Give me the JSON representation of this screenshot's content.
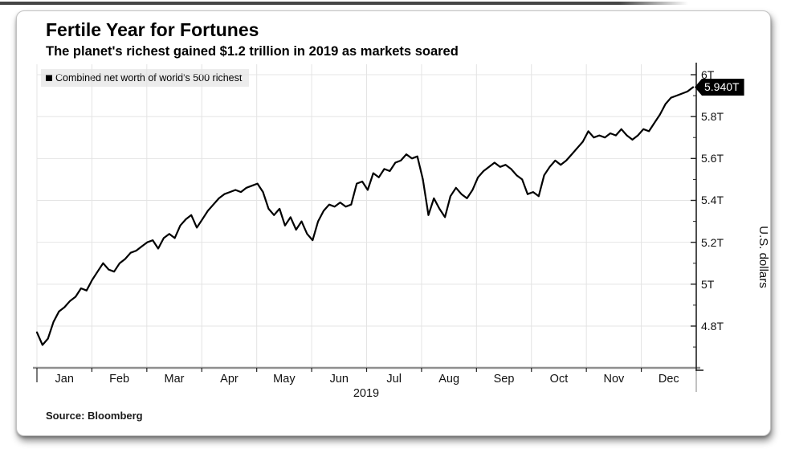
{
  "header": {
    "title": "Fertile Year for Fortunes",
    "subtitle": "The planet's richest gained $1.2 trillion in 2019 as markets soared"
  },
  "legend": {
    "label": "Combined net worth of world's 500 richest"
  },
  "footer": {
    "source": "Source: Bloomberg"
  },
  "colors": {
    "line": "#000000",
    "grid": "#e4e4e4",
    "axis": "#222222",
    "baseline": "#8f8f8f",
    "badge_bg": "#000000",
    "badge_text": "#ffffff",
    "legend_bg": "#ececec"
  },
  "chart_data": {
    "type": "line",
    "title": "Fertile Year for Fortunes",
    "subtitle": "The planet's richest gained $1.2 trillion in 2019 as markets soared",
    "xlabel": "2019",
    "ylabel": "U.S. dollars",
    "x_tick_labels": [
      "Jan",
      "Feb",
      "Mar",
      "Apr",
      "May",
      "Jun",
      "Jul",
      "Aug",
      "Sep",
      "Oct",
      "Nov",
      "Dec"
    ],
    "y_ticks": [
      {
        "value": 6.0,
        "label": "6T"
      },
      {
        "value": 5.8,
        "label": "5.8T"
      },
      {
        "value": 5.6,
        "label": "5.6T"
      },
      {
        "value": 5.4,
        "label": "5.4T"
      },
      {
        "value": 5.2,
        "label": "5.2T"
      },
      {
        "value": 5.0,
        "label": "5T"
      },
      {
        "value": 4.8,
        "label": "4.8T"
      }
    ],
    "y_minor_ticks": [
      4.7,
      4.9,
      5.1,
      5.3,
      5.5,
      5.7,
      5.9
    ],
    "ylim": [
      4.6,
      6.04
    ],
    "grid": true,
    "legend_position": "top-left",
    "last_point_label": "5.940T",
    "last_point_value": 5.94,
    "series": [
      {
        "name": "Combined net worth of world's 500 richest",
        "color": "#000000",
        "values": [
          4.77,
          4.71,
          4.74,
          4.82,
          4.87,
          4.89,
          4.92,
          4.94,
          4.98,
          4.97,
          5.02,
          5.06,
          5.1,
          5.07,
          5.06,
          5.1,
          5.12,
          5.15,
          5.16,
          5.18,
          5.2,
          5.21,
          5.17,
          5.22,
          5.24,
          5.22,
          5.28,
          5.31,
          5.33,
          5.27,
          5.31,
          5.35,
          5.38,
          5.41,
          5.43,
          5.44,
          5.45,
          5.44,
          5.46,
          5.47,
          5.48,
          5.44,
          5.36,
          5.33,
          5.36,
          5.28,
          5.32,
          5.26,
          5.3,
          5.24,
          5.21,
          5.3,
          5.35,
          5.38,
          5.37,
          5.39,
          5.37,
          5.38,
          5.48,
          5.49,
          5.45,
          5.53,
          5.51,
          5.55,
          5.54,
          5.58,
          5.59,
          5.62,
          5.6,
          5.61,
          5.5,
          5.33,
          5.41,
          5.36,
          5.32,
          5.42,
          5.46,
          5.43,
          5.41,
          5.45,
          5.51,
          5.54,
          5.56,
          5.58,
          5.56,
          5.57,
          5.55,
          5.52,
          5.5,
          5.43,
          5.44,
          5.42,
          5.52,
          5.56,
          5.59,
          5.57,
          5.59,
          5.62,
          5.65,
          5.68,
          5.73,
          5.7,
          5.71,
          5.7,
          5.72,
          5.71,
          5.74,
          5.71,
          5.69,
          5.71,
          5.74,
          5.73,
          5.77,
          5.81,
          5.86,
          5.89,
          5.9,
          5.91,
          5.92,
          5.94
        ]
      }
    ]
  }
}
